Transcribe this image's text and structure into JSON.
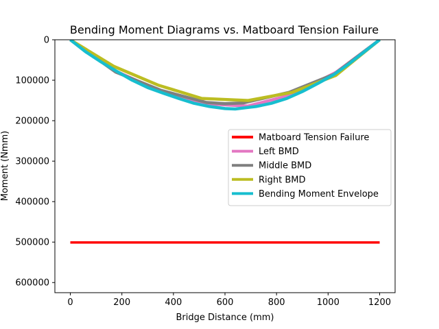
{
  "chart_data": {
    "type": "line",
    "title": "Bending Moment Diagrams vs. Matboard Tension Failure",
    "xlabel": "Bridge Distance (mm)",
    "ylabel": "Moment (Nmm)",
    "xlim": [
      -60,
      1260
    ],
    "ylim": [
      625000,
      0
    ],
    "y_inverted": true,
    "x_ticks": [
      0,
      200,
      400,
      600,
      800,
      1000,
      1200
    ],
    "y_ticks": [
      0,
      100000,
      200000,
      300000,
      400000,
      500000,
      600000
    ],
    "legend_position": "center-right",
    "grid": false,
    "series": [
      {
        "name": "Matboard Tension Failure",
        "color": "#ff0000",
        "x": [
          0,
          1200
        ],
        "y": [
          501000,
          501000
        ]
      },
      {
        "name": "Left BMD",
        "color": "#e377c2",
        "x": [
          0,
          172,
          344,
          516,
          688,
          860,
          1032,
          1200
        ],
        "y": [
          0,
          76000,
          126000,
          158000,
          164000,
          136000,
          80000,
          0
        ]
      },
      {
        "name": "Middle BMD",
        "color": "#7f7f7f",
        "x": [
          0,
          176,
          352,
          528,
          600,
          672,
          848,
          1024,
          1200
        ],
        "y": [
          0,
          80000,
          125000,
          155000,
          158000,
          156000,
          130000,
          85000,
          0
        ]
      },
      {
        "name": "Right BMD",
        "color": "#bcbd22",
        "x": [
          0,
          170,
          340,
          510,
          690,
          860,
          1030,
          1200
        ],
        "y": [
          0,
          66000,
          112000,
          145000,
          150000,
          130000,
          88000,
          0
        ]
      },
      {
        "name": "Bending Moment Envelope",
        "color": "#17becf",
        "x": [
          0,
          60,
          120,
          180,
          240,
          300,
          360,
          420,
          480,
          540,
          600,
          640,
          680,
          720,
          780,
          840,
          900,
          960,
          1020,
          1080,
          1140,
          1200
        ],
        "y": [
          0,
          30000,
          55000,
          78000,
          100000,
          118000,
          132000,
          145000,
          157000,
          165000,
          170000,
          171000,
          168000,
          165000,
          157000,
          145000,
          128000,
          108000,
          87000,
          60000,
          30000,
          0
        ]
      }
    ]
  }
}
